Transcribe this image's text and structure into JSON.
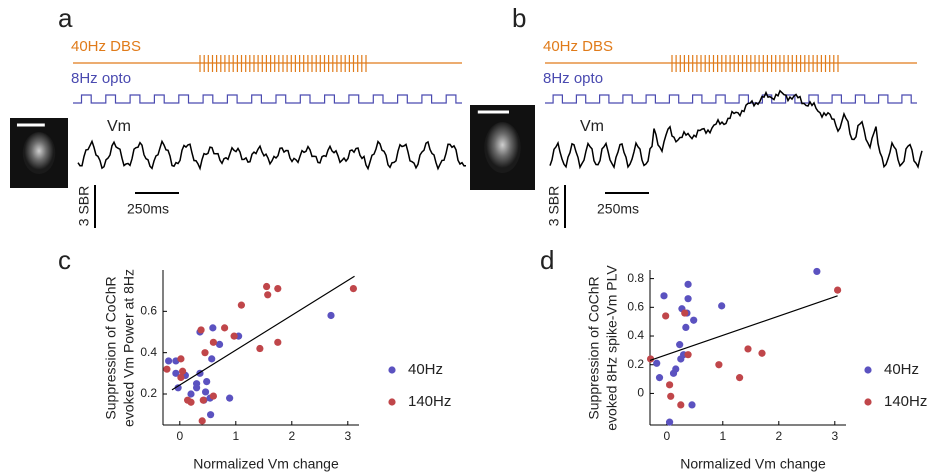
{
  "trace_panels": [
    {
      "label": "a",
      "stim1": "40Hz DBS",
      "stim2": "8Hz opto",
      "trace": "Vm",
      "scale_y": "3 SBR",
      "scale_x": "250ms"
    },
    {
      "label": "b",
      "stim1": "40Hz DBS",
      "stim2": "8Hz opto",
      "trace": "Vm",
      "scale_y": "3 SBR",
      "scale_x": "250ms"
    }
  ],
  "chart_data": [
    {
      "type": "scatter",
      "label": "c",
      "ylabel": [
        "Suppression of CoChR",
        "evoked Vm Power at 8Hz"
      ],
      "xlabel": "Normalized Vm change",
      "xlim": [
        -0.3,
        3.2
      ],
      "ylim": [
        0.05,
        0.8
      ],
      "xticks": [
        0,
        1,
        2,
        3
      ],
      "yticks": [
        0.2,
        0.4,
        0.6
      ],
      "series": [
        {
          "name": "40Hz",
          "color": "#5b52c0",
          "x": [
            -0.03,
            -0.07,
            0.1,
            0.2,
            0.3,
            0.36,
            0.36,
            0.46,
            0.48,
            0.54,
            0.59,
            0.57,
            0.71,
            0.89,
            1.05,
            0.43,
            0.55,
            -0.07,
            -0.2,
            2.7,
            0.3
          ],
          "values": [
            0.23,
            0.3,
            0.29,
            0.2,
            0.25,
            0.3,
            0.5,
            0.21,
            0.26,
            0.18,
            0.52,
            0.37,
            0.44,
            0.18,
            0.48,
            0.17,
            0.1,
            0.36,
            0.36,
            0.58,
            0.23
          ]
        },
        {
          "name": "140Hz",
          "color": "#c0464a",
          "x": [
            -0.23,
            0.02,
            0.05,
            0.14,
            0.2,
            0.38,
            0.45,
            0.6,
            0.6,
            0.4,
            0.42,
            0.8,
            0.97,
            1.1,
            1.43,
            1.55,
            1.57,
            1.75,
            1.75,
            3.1,
            0.02
          ],
          "values": [
            0.32,
            0.37,
            0.31,
            0.17,
            0.16,
            0.51,
            0.4,
            0.45,
            0.19,
            0.07,
            0.17,
            0.52,
            0.48,
            0.63,
            0.42,
            0.72,
            0.68,
            0.71,
            0.45,
            0.71,
            0.28
          ]
        }
      ],
      "fit_line": {
        "x": [
          -0.14,
          3.12
        ],
        "y": [
          0.22,
          0.77
        ]
      }
    },
    {
      "type": "scatter",
      "label": "d",
      "ylabel": [
        "Suppression of CoChR",
        "evoked 8Hz spike-Vm PLV"
      ],
      "xlabel": "Normalized Vm change",
      "xlim": [
        -0.3,
        3.2
      ],
      "ylim": [
        -0.22,
        0.86
      ],
      "xticks": [
        0,
        1,
        2,
        3
      ],
      "yticks": [
        0,
        0.2,
        0.4,
        0.6,
        0.8
      ],
      "series": [
        {
          "name": "40Hz",
          "color": "#5b52c0",
          "x": [
            -0.18,
            -0.13,
            0.05,
            0.23,
            0.25,
            0.3,
            0.27,
            0.36,
            0.34,
            0.38,
            0.38,
            0.48,
            0.45,
            0.16,
            0.12,
            0.98,
            2.68,
            -0.05
          ],
          "values": [
            0.21,
            0.11,
            -0.2,
            0.34,
            0.24,
            0.27,
            0.59,
            0.56,
            0.46,
            0.76,
            0.66,
            0.51,
            -0.08,
            0.17,
            0.14,
            0.61,
            0.85,
            0.68
          ]
        },
        {
          "name": "140Hz",
          "color": "#c0464a",
          "x": [
            -0.29,
            -0.02,
            0.05,
            0.07,
            0.25,
            0.38,
            0.32,
            0.93,
            1.3,
            1.45,
            1.7,
            3.05
          ],
          "values": [
            0.24,
            0.54,
            0.06,
            -0.02,
            -0.08,
            0.27,
            0.56,
            0.2,
            0.11,
            0.31,
            0.28,
            0.72
          ]
        }
      ],
      "fit_line": {
        "x": [
          -0.3,
          3.05
        ],
        "y": [
          0.23,
          0.68
        ]
      }
    }
  ]
}
